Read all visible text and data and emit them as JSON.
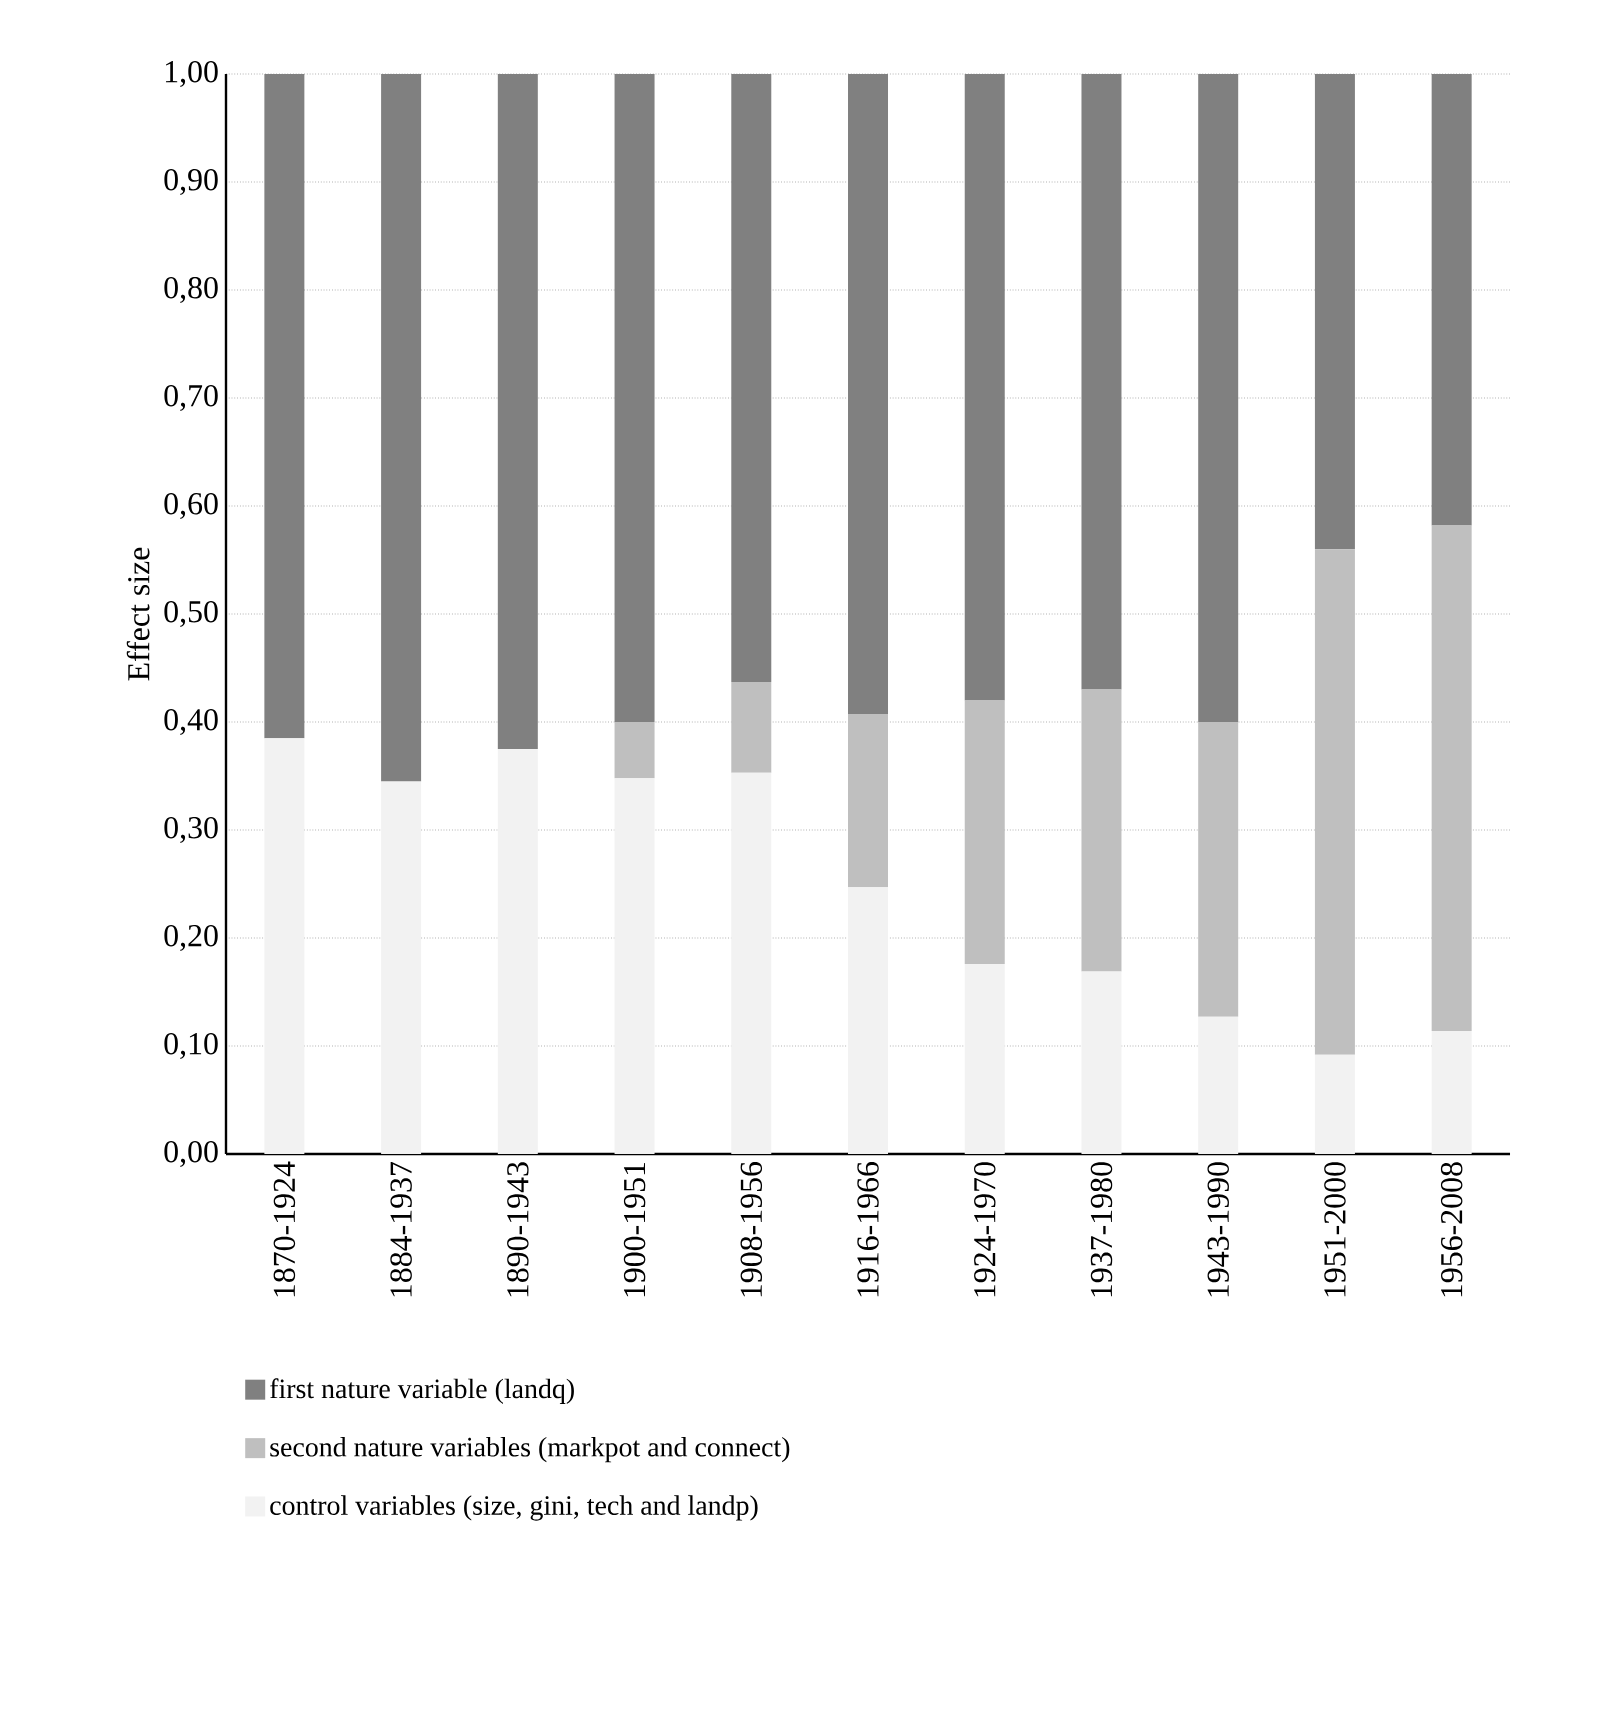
{
  "chart_data": {
    "type": "bar",
    "ylabel": "Effect size",
    "stacked": true,
    "grid": "y",
    "legend": "bottom",
    "categories": [
      "1870-1924",
      "1884-1937",
      "1890-1943",
      "1900-1951",
      "1908-1956",
      "1916-1966",
      "1924-1970",
      "1937-1980",
      "1943-1990",
      "1951-2000",
      "1956-2008"
    ],
    "series": [
      {
        "name": "control variables (size, gini, tech and landp)",
        "color": "#f2f2f2",
        "values": [
          0.385,
          0.345,
          0.375,
          0.348,
          0.353,
          0.247,
          0.176,
          0.169,
          0.127,
          0.092,
          0.114
        ]
      },
      {
        "name": "second nature variables (markpot and connect)",
        "color": "#bfbfbf",
        "values": [
          0,
          0,
          0,
          0.052,
          0.084,
          0.16,
          0.244,
          0.261,
          0.273,
          0.468,
          0.468
        ]
      },
      {
        "name": "first nature variable (landq)",
        "color": "#808080",
        "values": [
          0.615,
          0.655,
          0.625,
          0.6,
          0.563,
          0.593,
          0.58,
          0.57,
          0.6,
          0.44,
          0.418
        ]
      }
    ],
    "ylim": [
      0,
      1
    ],
    "yticks": [
      {
        "value": 0,
        "label": "0,00"
      },
      {
        "value": 0.1,
        "label": "0,10"
      },
      {
        "value": 0.2,
        "label": "0,20"
      },
      {
        "value": 0.3,
        "label": "0,30"
      },
      {
        "value": 0.4,
        "label": "0,40"
      },
      {
        "value": 0.5,
        "label": "0,50"
      },
      {
        "value": 0.6,
        "label": "0,60"
      },
      {
        "value": 0.7,
        "label": "0,70"
      },
      {
        "value": 0.8,
        "label": "0,80"
      },
      {
        "value": 0.9,
        "label": "0,90"
      },
      {
        "value": 1,
        "label": "1,00"
      }
    ]
  }
}
